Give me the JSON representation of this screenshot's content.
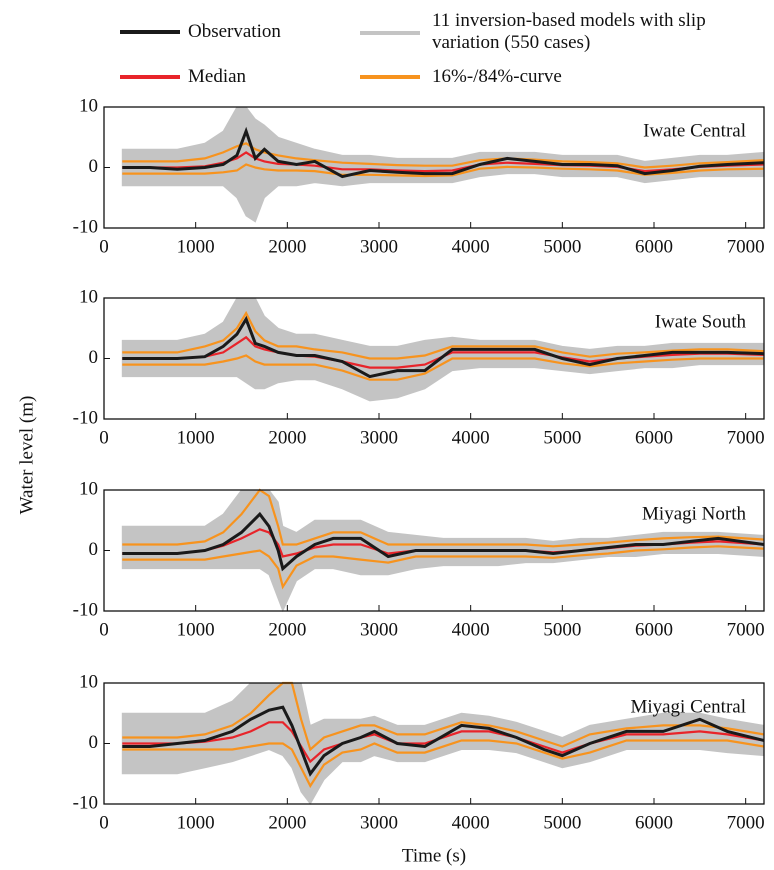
{
  "ylabel": "Water level (m)",
  "xlabel": "Time (s)",
  "legend": [
    {
      "name": "Observation",
      "color": "#1a1a1a",
      "style": "line"
    },
    {
      "name": "11 inversion-based models with slip variation (550 cases)",
      "color": "#c4c4c4",
      "style": "band"
    },
    {
      "name": "Median",
      "color": "#e8242a",
      "style": "line"
    },
    {
      "name": "16%-/84%-curve",
      "color": "#f7931e",
      "style": "pair"
    }
  ],
  "chart_data": [
    {
      "type": "line",
      "title": "Iwate Central",
      "xlim": [
        0,
        7200
      ],
      "ylim": [
        -10,
        10
      ],
      "xticks": [
        0,
        1000,
        2000,
        3000,
        4000,
        5000,
        6000,
        7000
      ],
      "yticks": [
        -10,
        0,
        10
      ],
      "x": [
        200,
        500,
        800,
        1100,
        1300,
        1450,
        1550,
        1650,
        1750,
        1900,
        2100,
        2300,
        2600,
        2900,
        3200,
        3500,
        3800,
        4100,
        4400,
        4700,
        5000,
        5300,
        5600,
        5900,
        6200,
        6500,
        6800,
        7200
      ],
      "series": [
        {
          "values": [
            0,
            0,
            -0.3,
            0,
            0.5,
            2,
            6,
            1.5,
            3,
            1,
            0.5,
            1,
            -1.5,
            -0.5,
            -0.8,
            -1,
            -1,
            0.5,
            1.5,
            1,
            0.5,
            0.5,
            0.3,
            -1,
            -0.5,
            0.2,
            0.5,
            0.8
          ]
        },
        {
          "values": [
            3,
            3,
            3,
            4,
            6,
            10,
            10,
            8,
            7,
            5,
            4,
            3,
            2,
            2,
            1.5,
            1.5,
            1.5,
            2.5,
            2.5,
            2.5,
            2,
            2,
            2,
            1,
            1.5,
            2,
            2,
            2.5
          ],
          "lower": [
            -3,
            -3,
            -3,
            -3,
            -3,
            -5,
            -8,
            -9,
            -5,
            -3,
            -3,
            -2.5,
            -3,
            -2.5,
            -2.5,
            -2.5,
            -2.5,
            -1.5,
            -1,
            -1,
            -1.5,
            -1.5,
            -1.5,
            -2.5,
            -2,
            -1.5,
            -1.5,
            -1.5
          ]
        },
        {
          "values": [
            0,
            0,
            0,
            0.2,
            0.8,
            1.5,
            2.5,
            1.5,
            1,
            0.6,
            0.5,
            0.3,
            -0.3,
            -0.3,
            -0.5,
            -0.6,
            -0.5,
            0.5,
            0.8,
            0.6,
            0.4,
            0.3,
            0.1,
            -0.6,
            -0.3,
            0.1,
            0.3,
            0.5
          ]
        },
        {
          "values": [
            1,
            1,
            1,
            1.5,
            2.5,
            3.5,
            4,
            3,
            2.5,
            2,
            1.5,
            1.2,
            0.8,
            0.6,
            0.4,
            0.3,
            0.3,
            1.2,
            1.5,
            1.3,
            1,
            0.9,
            0.7,
            0,
            0.3,
            0.7,
            0.9,
            1.2
          ],
          "lower": [
            -1,
            -1,
            -1,
            -1,
            -0.8,
            -0.5,
            0.5,
            0,
            -0.3,
            -0.5,
            -0.5,
            -0.6,
            -1.2,
            -1.2,
            -1.3,
            -1.4,
            -1.3,
            -0.2,
            0.1,
            0,
            -0.2,
            -0.3,
            -0.5,
            -1.2,
            -0.9,
            -0.5,
            -0.3,
            -0.2
          ]
        }
      ]
    },
    {
      "type": "line",
      "title": "Iwate South",
      "xlim": [
        0,
        7200
      ],
      "ylim": [
        -10,
        10
      ],
      "xticks": [
        0,
        1000,
        2000,
        3000,
        4000,
        5000,
        6000,
        7000
      ],
      "yticks": [
        -10,
        0,
        10
      ],
      "x": [
        200,
        500,
        800,
        1100,
        1300,
        1450,
        1550,
        1650,
        1750,
        1900,
        2100,
        2300,
        2600,
        2900,
        3200,
        3500,
        3800,
        4100,
        4400,
        4700,
        5000,
        5300,
        5600,
        5900,
        6200,
        6500,
        6800,
        7200
      ],
      "series": [
        {
          "values": [
            0,
            0,
            0,
            0.3,
            2,
            4,
            6.5,
            2.5,
            2,
            1,
            0.5,
            0.5,
            -0.5,
            -3,
            -2,
            -2,
            1.5,
            1.5,
            1.5,
            1.5,
            0,
            -1,
            0,
            0.5,
            1,
            1,
            1,
            0.8
          ]
        },
        {
          "values": [
            3,
            3,
            3,
            4,
            6,
            10,
            10,
            10,
            7,
            5,
            4,
            4,
            3,
            2,
            2,
            3,
            3.5,
            3,
            3,
            3,
            2,
            1.5,
            2,
            2,
            2.5,
            2.5,
            2.5,
            2.5
          ],
          "lower": [
            -3,
            -3,
            -3,
            -3,
            -3,
            -3,
            -4,
            -5,
            -5,
            -4,
            -3.5,
            -3.5,
            -5,
            -7,
            -6.5,
            -5,
            -2,
            -1.5,
            -1.5,
            -1.5,
            -2,
            -2.5,
            -2,
            -1.5,
            -1.5,
            -1,
            -1,
            -1
          ]
        },
        {
          "values": [
            0,
            0,
            0,
            0.3,
            1,
            2.5,
            3.5,
            2,
            1.5,
            1,
            0.5,
            0.3,
            -0.5,
            -1.5,
            -1.5,
            -1,
            1,
            1,
            1,
            1,
            0.2,
            -0.5,
            0,
            0.3,
            0.6,
            0.8,
            0.8,
            0.6
          ]
        },
        {
          "values": [
            1,
            1,
            1,
            2,
            3,
            5,
            7.5,
            4.5,
            3,
            2,
            2,
            1.5,
            1,
            0,
            0,
            0.5,
            2,
            2,
            2,
            2,
            1,
            0.3,
            0.8,
            1,
            1.3,
            1.5,
            1.5,
            1.2
          ],
          "lower": [
            -1,
            -1,
            -1,
            -1,
            -0.5,
            0,
            0.5,
            -0.5,
            -1,
            -1,
            -1,
            -1,
            -2,
            -3.5,
            -3.5,
            -2.5,
            0,
            0,
            0,
            0,
            -0.8,
            -1.3,
            -0.8,
            -0.5,
            -0.2,
            0,
            0,
            0
          ]
        }
      ]
    },
    {
      "type": "line",
      "title": "Miyagi North",
      "xlim": [
        0,
        7200
      ],
      "ylim": [
        -10,
        10
      ],
      "xticks": [
        0,
        1000,
        2000,
        3000,
        4000,
        5000,
        6000,
        7000
      ],
      "yticks": [
        -10,
        0,
        10
      ],
      "x": [
        200,
        500,
        800,
        1100,
        1300,
        1500,
        1700,
        1800,
        1900,
        1950,
        2100,
        2300,
        2500,
        2800,
        3100,
        3400,
        3700,
        4000,
        4300,
        4600,
        4900,
        5200,
        5500,
        5800,
        6100,
        6400,
        6700,
        7200
      ],
      "series": [
        {
          "values": [
            -0.5,
            -0.5,
            -0.5,
            0,
            1,
            3,
            6,
            4,
            0,
            -3,
            -1,
            1,
            2,
            2,
            -1,
            0,
            0,
            0,
            0,
            0,
            -0.5,
            0,
            0.5,
            1,
            1,
            1.5,
            2,
            1
          ]
        },
        {
          "values": [
            4,
            4,
            4,
            4,
            6,
            10,
            10,
            10,
            8,
            4,
            3,
            5,
            5,
            5,
            3,
            2.5,
            2,
            2,
            2,
            2,
            1.5,
            2,
            2,
            2.5,
            3,
            3,
            3,
            2.5
          ],
          "lower": [
            -3,
            -3,
            -3,
            -3,
            -3,
            -3,
            -3,
            -4,
            -8,
            -10,
            -5,
            -3,
            -3,
            -4,
            -4,
            -3,
            -2.5,
            -2.5,
            -2.5,
            -2,
            -2,
            -1.5,
            -1,
            -1,
            -0.5,
            -0.5,
            -0.5,
            -1
          ]
        },
        {
          "values": [
            -0.5,
            -0.5,
            -0.5,
            0,
            0.8,
            2,
            3.5,
            3,
            1,
            -1,
            -0.5,
            0.5,
            1,
            1,
            -0.5,
            0,
            0,
            0,
            0,
            0,
            -0.3,
            0,
            0.4,
            0.8,
            1,
            1.3,
            1.5,
            1
          ]
        },
        {
          "values": [
            1,
            1,
            1,
            1.5,
            3,
            6,
            10,
            9,
            4,
            1,
            1,
            2,
            3,
            3,
            1,
            1,
            1,
            1,
            1,
            1,
            0.7,
            1,
            1.3,
            1.7,
            2,
            2.2,
            2.3,
            1.8
          ],
          "lower": [
            -1.5,
            -1.5,
            -1.5,
            -1.5,
            -1,
            -0.5,
            0,
            -1,
            -3,
            -6,
            -2.5,
            -1,
            -1,
            -1.5,
            -2,
            -1,
            -1,
            -1,
            -1,
            -1,
            -1.2,
            -0.8,
            -0.5,
            0,
            0.2,
            0.5,
            0.7,
            0.3
          ]
        }
      ]
    },
    {
      "type": "line",
      "title": "Miyagi Central",
      "xlim": [
        0,
        7200
      ],
      "ylim": [
        -10,
        10
      ],
      "xticks": [
        0,
        1000,
        2000,
        3000,
        4000,
        5000,
        6000,
        7000
      ],
      "yticks": [
        -10,
        0,
        10
      ],
      "x": [
        200,
        500,
        800,
        1100,
        1400,
        1600,
        1800,
        1950,
        2050,
        2150,
        2250,
        2400,
        2600,
        2800,
        2950,
        3200,
        3500,
        3900,
        4200,
        4500,
        4800,
        5000,
        5300,
        5700,
        6100,
        6500,
        6800,
        7200
      ],
      "series": [
        {
          "values": [
            -0.5,
            -0.5,
            0,
            0.5,
            2,
            4,
            5.5,
            6,
            3,
            -1,
            -5,
            -2,
            0,
            1,
            2,
            0,
            -0.5,
            3,
            2.5,
            1,
            -1,
            -2,
            0,
            2,
            2,
            4,
            2,
            0.5
          ]
        },
        {
          "values": [
            5,
            5,
            5,
            5,
            7,
            10,
            10,
            10,
            10,
            10,
            3,
            4,
            4,
            4,
            4.5,
            3,
            3,
            5,
            4.5,
            3.5,
            2,
            1,
            3,
            4,
            5,
            5,
            4,
            3
          ],
          "lower": [
            -5,
            -5,
            -5,
            -4,
            -3,
            -2,
            -1,
            -2,
            -4,
            -8,
            -10,
            -6,
            -3,
            -3,
            -2,
            -3,
            -3,
            -1,
            -1,
            -1.5,
            -3,
            -4,
            -3,
            -1,
            -1,
            -1,
            -1.5,
            -2
          ]
        },
        {
          "values": [
            0,
            0,
            0,
            0.3,
            1,
            2,
            3.5,
            3.5,
            2,
            -0.5,
            -3,
            -1,
            0,
            1,
            1.5,
            0,
            0,
            2,
            2,
            1,
            -0.5,
            -1.5,
            0,
            1.5,
            1.5,
            2,
            1.5,
            0.5
          ]
        },
        {
          "values": [
            1,
            1,
            1,
            1.5,
            3,
            5,
            8,
            10,
            10,
            4,
            -1,
            1,
            2,
            3,
            3,
            1.5,
            1.5,
            3.5,
            3,
            2,
            0.5,
            -0.5,
            1.5,
            2.5,
            3,
            3,
            2.5,
            1.5
          ],
          "lower": [
            -1,
            -1,
            -1,
            -1,
            -1,
            -0.5,
            0,
            0,
            -1,
            -4,
            -7,
            -3.5,
            -1.5,
            -1,
            0,
            -1.5,
            -1.5,
            0.5,
            0.5,
            0,
            -1.5,
            -2.5,
            -1.5,
            0.5,
            0.5,
            0.5,
            0.5,
            -0.5
          ]
        }
      ]
    }
  ]
}
